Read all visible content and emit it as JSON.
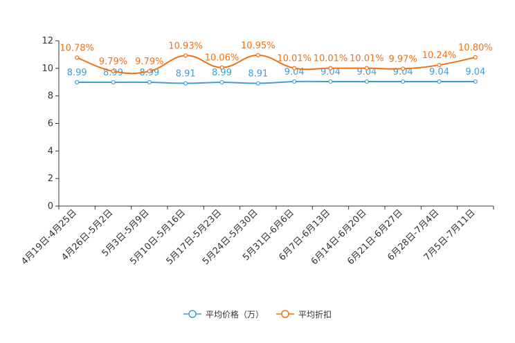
{
  "chart_data": {
    "type": "line",
    "categories": [
      "4月19日-4月25日",
      "4月26日-5月2日",
      "5月3日-5月9日",
      "5月10日-5月16日",
      "5月17日-5月23日",
      "5月24日-5月30日",
      "5月31日-6月6日",
      "6月7日-6月13日",
      "6月14日-6月20日",
      "6月21日-6月27日",
      "6月28日-7月4日",
      "7月5日-7月11日"
    ],
    "ylim": [
      0,
      12
    ],
    "yticks": [
      0,
      2,
      4,
      6,
      8,
      10,
      12
    ],
    "series": [
      {
        "name": "平均价格（万）",
        "color": "#3f9fd2",
        "values": [
          8.99,
          8.99,
          8.99,
          8.91,
          8.99,
          8.91,
          9.04,
          9.04,
          9.04,
          9.04,
          9.04,
          9.04
        ],
        "labels": [
          "8.99",
          "8.99",
          "8.99",
          "8.91",
          "8.99",
          "8.91",
          "9.04",
          "9.04",
          "9.04",
          "9.04",
          "9.04",
          "9.04"
        ]
      },
      {
        "name": "平均折扣",
        "color": "#f46f12",
        "values": [
          10.78,
          9.79,
          9.79,
          10.93,
          10.06,
          10.95,
          10.01,
          10.01,
          10.01,
          9.97,
          10.24,
          10.8
        ],
        "labels": [
          "10.78%",
          "9.79%",
          "9.79%",
          "10.93%",
          "10.06%",
          "10.95%",
          "10.01%",
          "10.01%",
          "10.01%",
          "9.97%",
          "10.24%",
          "10.80%"
        ]
      }
    ],
    "legend_position": "bottom-center",
    "grid": false
  }
}
